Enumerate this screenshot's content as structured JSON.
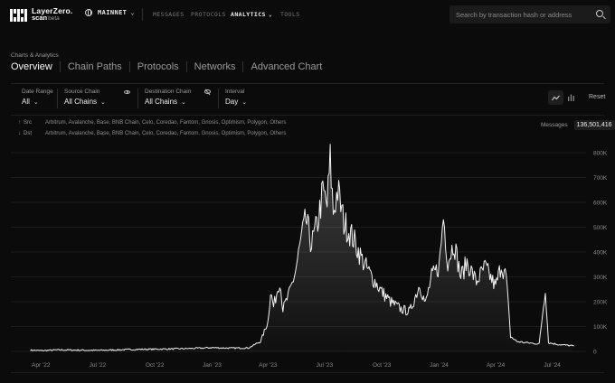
{
  "header": {
    "logo_line1": "LayerZero.",
    "logo_line2": "scan",
    "logo_beta": "beta",
    "network": "MAINNET",
    "nav": [
      {
        "label": "MESSAGES",
        "active": false
      },
      {
        "label": "PROTOCOLS",
        "active": false
      },
      {
        "label": "ANALYTICS",
        "active": true
      },
      {
        "label": "TOOLS",
        "active": false
      }
    ],
    "search_placeholder": "Search by transaction hash or address"
  },
  "page": {
    "breadcrumb": "Charts & Analytics",
    "tabs": [
      {
        "label": "Overview",
        "active": true
      },
      {
        "label": "Chain Paths",
        "active": false
      },
      {
        "label": "Protocols",
        "active": false
      },
      {
        "label": "Networks",
        "active": false
      },
      {
        "label": "Advanced Chart",
        "active": false
      }
    ]
  },
  "filters": {
    "date_range": {
      "label": "Date Range",
      "value": "All"
    },
    "source_chain": {
      "label": "Source Chain",
      "value": "All Chains"
    },
    "destination_chain": {
      "label": "Destination Chain",
      "value": "All Chains"
    },
    "interval": {
      "label": "Interval",
      "value": "Day"
    },
    "reset": "Reset"
  },
  "chains": {
    "src_label": "Src",
    "dst_label": "Dst",
    "src_list": "Arbitrum, Avalanche, Base, BNB Chain, Celo, Coredao, Fantom, Gnosis, Optimism, Polygon, Others",
    "dst_list": "Arbitrum, Avalanche, Base, BNB Chain, Celo, Coredao, Fantom, Gnosis, Optimism, Polygon, Others"
  },
  "messages": {
    "label": "Messages",
    "count": "136,501,416"
  },
  "icons": {
    "search": "search-icon",
    "network": "globe-icon",
    "line_chart": "line-chart-icon",
    "bar_chart": "bar-chart-icon",
    "eye": "eye-icon",
    "eye_off": "eye-off-icon"
  },
  "chart_data": {
    "type": "area",
    "x_tick_labels": [
      "Apr '22",
      "Jul '22",
      "Oct '22",
      "Jan '23",
      "Apr '23",
      "Jul '23",
      "Oct '23",
      "Jan '24",
      "Apr '24",
      "Jul '24"
    ],
    "y_tick_labels": [
      "0",
      "100K",
      "200K",
      "300K",
      "400K",
      "500K",
      "600K",
      "700K",
      "800K"
    ],
    "ylim": [
      0,
      800000
    ],
    "x_range": [
      "2022-03",
      "2024-08"
    ],
    "grid": true,
    "series": [
      {
        "points": [
          [
            "2022-03-15",
            5000
          ],
          [
            "2022-04-01",
            3000
          ],
          [
            "2022-05-01",
            6000
          ],
          [
            "2022-06-01",
            5000
          ],
          [
            "2022-07-01",
            4000
          ],
          [
            "2022-08-01",
            6000
          ],
          [
            "2022-09-01",
            8000
          ],
          [
            "2022-10-01",
            9000
          ],
          [
            "2022-11-01",
            10000
          ],
          [
            "2022-12-01",
            12000
          ],
          [
            "2023-01-01",
            15000
          ],
          [
            "2023-02-01",
            13000
          ],
          [
            "2023-03-01",
            14000
          ],
          [
            "2023-03-20",
            40000
          ],
          [
            "2023-04-01",
            120000
          ],
          [
            "2023-04-05",
            240000
          ],
          [
            "2023-04-10",
            180000
          ],
          [
            "2023-04-20",
            290000
          ],
          [
            "2023-04-25",
            170000
          ],
          [
            "2023-05-05",
            230000
          ],
          [
            "2023-05-15",
            320000
          ],
          [
            "2023-05-25",
            460000
          ],
          [
            "2023-06-01",
            530000
          ],
          [
            "2023-06-10",
            430000
          ],
          [
            "2023-06-20",
            520000
          ],
          [
            "2023-06-28",
            640000
          ],
          [
            "2023-07-05",
            590000
          ],
          [
            "2023-07-10",
            765000
          ],
          [
            "2023-07-15",
            560000
          ],
          [
            "2023-07-22",
            650000
          ],
          [
            "2023-08-01",
            520000
          ],
          [
            "2023-08-15",
            460000
          ],
          [
            "2023-09-01",
            360000
          ],
          [
            "2023-09-15",
            300000
          ],
          [
            "2023-10-01",
            240000
          ],
          [
            "2023-10-15",
            200000
          ],
          [
            "2023-11-01",
            170000
          ],
          [
            "2023-11-15",
            160000
          ],
          [
            "2023-12-01",
            270000
          ],
          [
            "2023-12-10",
            190000
          ],
          [
            "2023-12-20",
            300000
          ],
          [
            "2024-01-01",
            340000
          ],
          [
            "2024-01-08",
            545000
          ],
          [
            "2024-01-15",
            360000
          ],
          [
            "2024-01-25",
            440000
          ],
          [
            "2024-02-05",
            300000
          ],
          [
            "2024-02-15",
            360000
          ],
          [
            "2024-03-01",
            280000
          ],
          [
            "2024-03-15",
            340000
          ],
          [
            "2024-04-01",
            260000
          ],
          [
            "2024-04-10",
            350000
          ],
          [
            "2024-04-18",
            300000
          ],
          [
            "2024-04-25",
            60000
          ],
          [
            "2024-05-05",
            40000
          ],
          [
            "2024-05-20",
            35000
          ],
          [
            "2024-06-10",
            30000
          ],
          [
            "2024-06-20",
            255000
          ],
          [
            "2024-06-25",
            35000
          ],
          [
            "2024-07-10",
            28000
          ],
          [
            "2024-08-05",
            22000
          ]
        ]
      }
    ]
  }
}
